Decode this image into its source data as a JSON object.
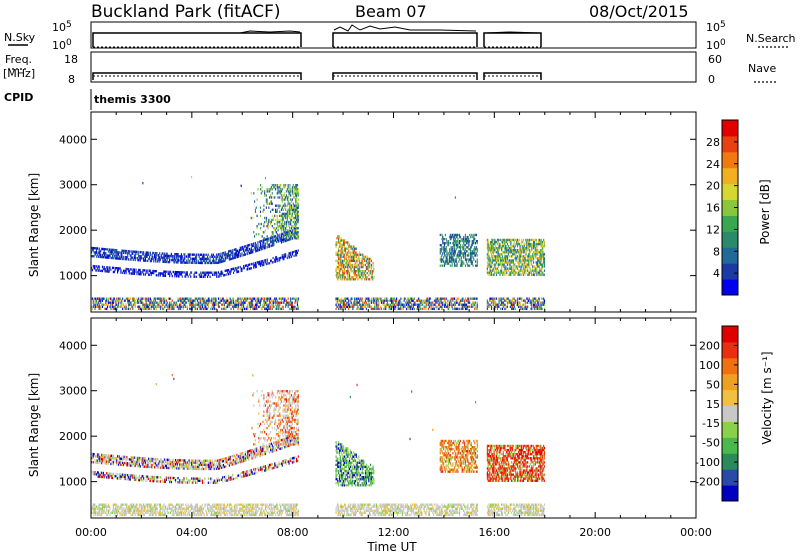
{
  "header": {
    "title": "Buckland Park (fitACF)",
    "beam": "Beam 07",
    "date": "08/Oct/2015",
    "cpid": "themis 3300"
  },
  "info_panels": {
    "nsky": {
      "label": "N.Sky",
      "ticks_top": "10^5",
      "ticks_bottom": "10^0"
    },
    "nsearch": {
      "label": "N.Search",
      "ticks_top": "10^5",
      "ticks_bottom": "10^0"
    },
    "freq": {
      "label_line1": "Freq.",
      "label_line2": "[MHz]",
      "tick_top": "18",
      "tick_bottom": "8"
    },
    "nave": {
      "label": "Nave",
      "tick_top": "60",
      "tick_bottom": "0"
    },
    "cpid_label": "CPID"
  },
  "chart_data": [
    {
      "type": "heatmap",
      "name": "power",
      "ylabel": "Slant Range [km]",
      "xlabel": "Time UT",
      "x_ticks": [
        "00:00",
        "04:00",
        "08:00",
        "12:00",
        "16:00",
        "20:00",
        "00:00"
      ],
      "xlim_hours": [
        0,
        24
      ],
      "ylim": [
        200,
        4600
      ],
      "y_ticks": [
        1000,
        2000,
        3000,
        4000
      ],
      "colorbar": {
        "label": "Power [dB]",
        "ticks": [
          "4",
          "8",
          "12",
          "16",
          "20",
          "24",
          "28"
        ],
        "colors": [
          "#0000ee",
          "#1c3aa4",
          "#206a9a",
          "#2a8a6a",
          "#3aa650",
          "#8ac63a",
          "#d6d630",
          "#f0b020",
          "#f07a10",
          "#e84010",
          "#e00000"
        ]
      },
      "data_intervals_hours": [
        [
          0.0,
          8.2
        ],
        [
          9.7,
          15.3
        ],
        [
          15.7,
          18.0
        ]
      ]
    },
    {
      "type": "heatmap",
      "name": "velocity",
      "ylabel": "Slant Range [km]",
      "xlabel": "Time UT",
      "x_ticks": [
        "00:00",
        "04:00",
        "08:00",
        "12:00",
        "16:00",
        "20:00",
        "00:00"
      ],
      "xlim_hours": [
        0,
        24
      ],
      "ylim": [
        200,
        4600
      ],
      "y_ticks": [
        1000,
        2000,
        3000,
        4000
      ],
      "colorbar": {
        "label": "Velocity [m s⁻¹]",
        "ticks": [
          "200",
          "100",
          "50",
          "15",
          "-15",
          "-50",
          "-100",
          "-200"
        ],
        "colors": [
          "#0000c0",
          "#2a4aa8",
          "#2a8a5a",
          "#4ab84a",
          "#8ad04a",
          "#c8c8c8",
          "#f0c040",
          "#f0a020",
          "#f07010",
          "#e83010",
          "#e00000"
        ]
      },
      "data_intervals_hours": [
        [
          0.0,
          8.2
        ],
        [
          9.7,
          15.3
        ],
        [
          15.7,
          18.0
        ]
      ]
    }
  ]
}
